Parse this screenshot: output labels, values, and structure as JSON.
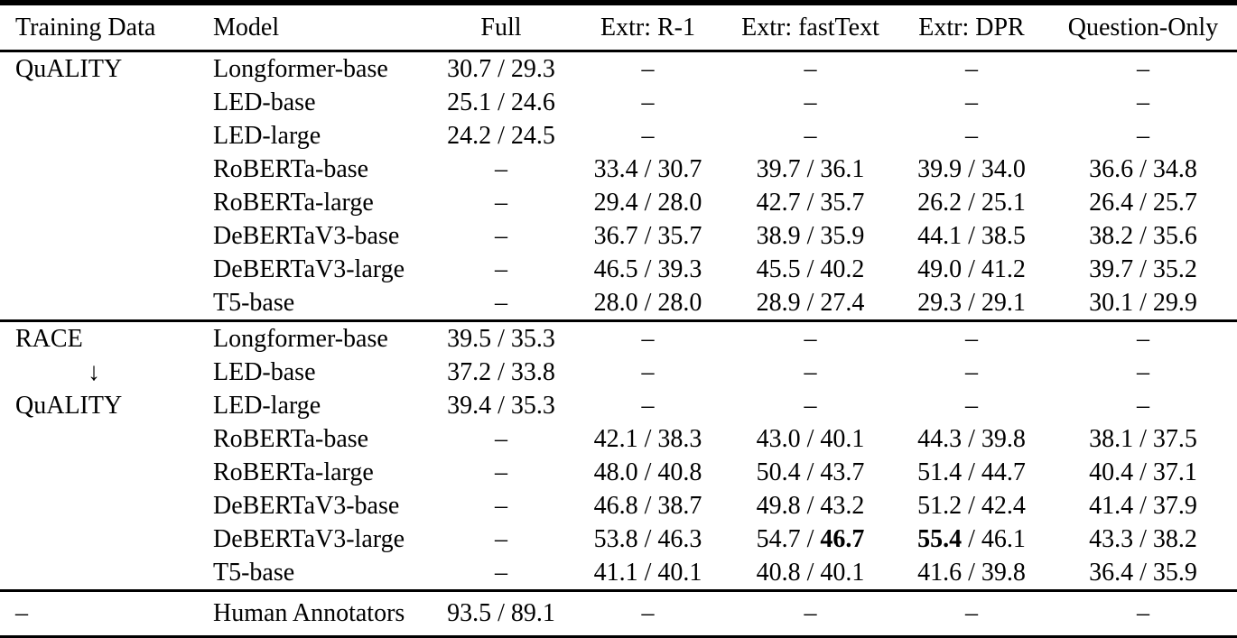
{
  "page": {
    "background_color": "#ffffff",
    "text_color": "#000000",
    "rule_color": "#000000"
  },
  "table": {
    "headers": [
      "Training Data",
      "Model",
      "Full",
      "Extr: R-1",
      "Extr: fastText",
      "Extr: DPR",
      "Question-Only"
    ],
    "empty_marker": "–",
    "down_arrow": "↓",
    "sections": [
      {
        "rows": [
          {
            "training": "QuALITY",
            "model": "Longformer-base",
            "cells": [
              "30.7 / 29.3",
              "–",
              "–",
              "–",
              "–"
            ]
          },
          {
            "training": "",
            "model": "LED-base",
            "cells": [
              "25.1 / 24.6",
              "–",
              "–",
              "–",
              "–"
            ]
          },
          {
            "training": "",
            "model": "LED-large",
            "cells": [
              "24.2 / 24.5",
              "–",
              "–",
              "–",
              "–"
            ]
          },
          {
            "training": "",
            "model": "RoBERTa-base",
            "cells": [
              "–",
              "33.4 / 30.7",
              "39.7 / 36.1",
              "39.9 / 34.0",
              "36.6 / 34.8"
            ]
          },
          {
            "training": "",
            "model": "RoBERTa-large",
            "cells": [
              "–",
              "29.4 / 28.0",
              "42.7 / 35.7",
              "26.2 / 25.1",
              "26.4 / 25.7"
            ]
          },
          {
            "training": "",
            "model": "DeBERTaV3-base",
            "cells": [
              "–",
              "36.7 / 35.7",
              "38.9 / 35.9",
              "44.1 / 38.5",
              "38.2 / 35.6"
            ]
          },
          {
            "training": "",
            "model": "DeBERTaV3-large",
            "cells": [
              "–",
              "46.5 / 39.3",
              "45.5 / 40.2",
              "49.0 / 41.2",
              "39.7 / 35.2"
            ]
          },
          {
            "training": "",
            "model": "T5-base",
            "cells": [
              "–",
              "28.0 / 28.0",
              "28.9 / 27.4",
              "29.3 / 29.1",
              "30.1 / 29.9"
            ]
          }
        ]
      },
      {
        "rows": [
          {
            "training": "RACE",
            "model": "Longformer-base",
            "cells": [
              "39.5 / 35.3",
              "–",
              "–",
              "–",
              "–"
            ]
          },
          {
            "training": "↓",
            "model": "LED-base",
            "cells": [
              "37.2 / 33.8",
              "–",
              "–",
              "–",
              "–"
            ]
          },
          {
            "training": "QuALITY",
            "model": "LED-large",
            "cells": [
              "39.4 / 35.3",
              "–",
              "–",
              "–",
              "–"
            ]
          },
          {
            "training": "",
            "model": "RoBERTa-base",
            "cells": [
              "–",
              "42.1 / 38.3",
              "43.0 / 40.1",
              "44.3 / 39.8",
              "38.1 / 37.5"
            ]
          },
          {
            "training": "",
            "model": "RoBERTa-large",
            "cells": [
              "–",
              "48.0 / 40.8",
              "50.4 / 43.7",
              "51.4 / 44.7",
              "40.4 / 37.1"
            ]
          },
          {
            "training": "",
            "model": "DeBERTaV3-base",
            "cells": [
              "–",
              "46.8 / 38.7",
              "49.8 / 43.2",
              "51.2 / 42.4",
              "41.4 / 37.9"
            ]
          },
          {
            "training": "",
            "model": "DeBERTaV3-large",
            "cells": [
              "–",
              "53.8 / 46.3",
              [
                {
                  "t": "54.7 / ",
                  "b": false
                },
                {
                  "t": "46.7",
                  "b": true
                }
              ],
              [
                {
                  "t": "55.4",
                  "b": true
                },
                {
                  "t": " / 46.1",
                  "b": false
                }
              ],
              "43.3 / 38.2"
            ]
          },
          {
            "training": "",
            "model": "T5-base",
            "cells": [
              "–",
              "41.1 / 40.1",
              "40.8 / 40.1",
              "41.6 / 39.8",
              "36.4 / 35.9"
            ]
          }
        ]
      },
      {
        "tall": true,
        "rows": [
          {
            "training": "–",
            "model": "Human Annotators",
            "cells": [
              "93.5 / 89.1",
              "–",
              "–",
              "–",
              "–"
            ]
          }
        ]
      }
    ]
  }
}
